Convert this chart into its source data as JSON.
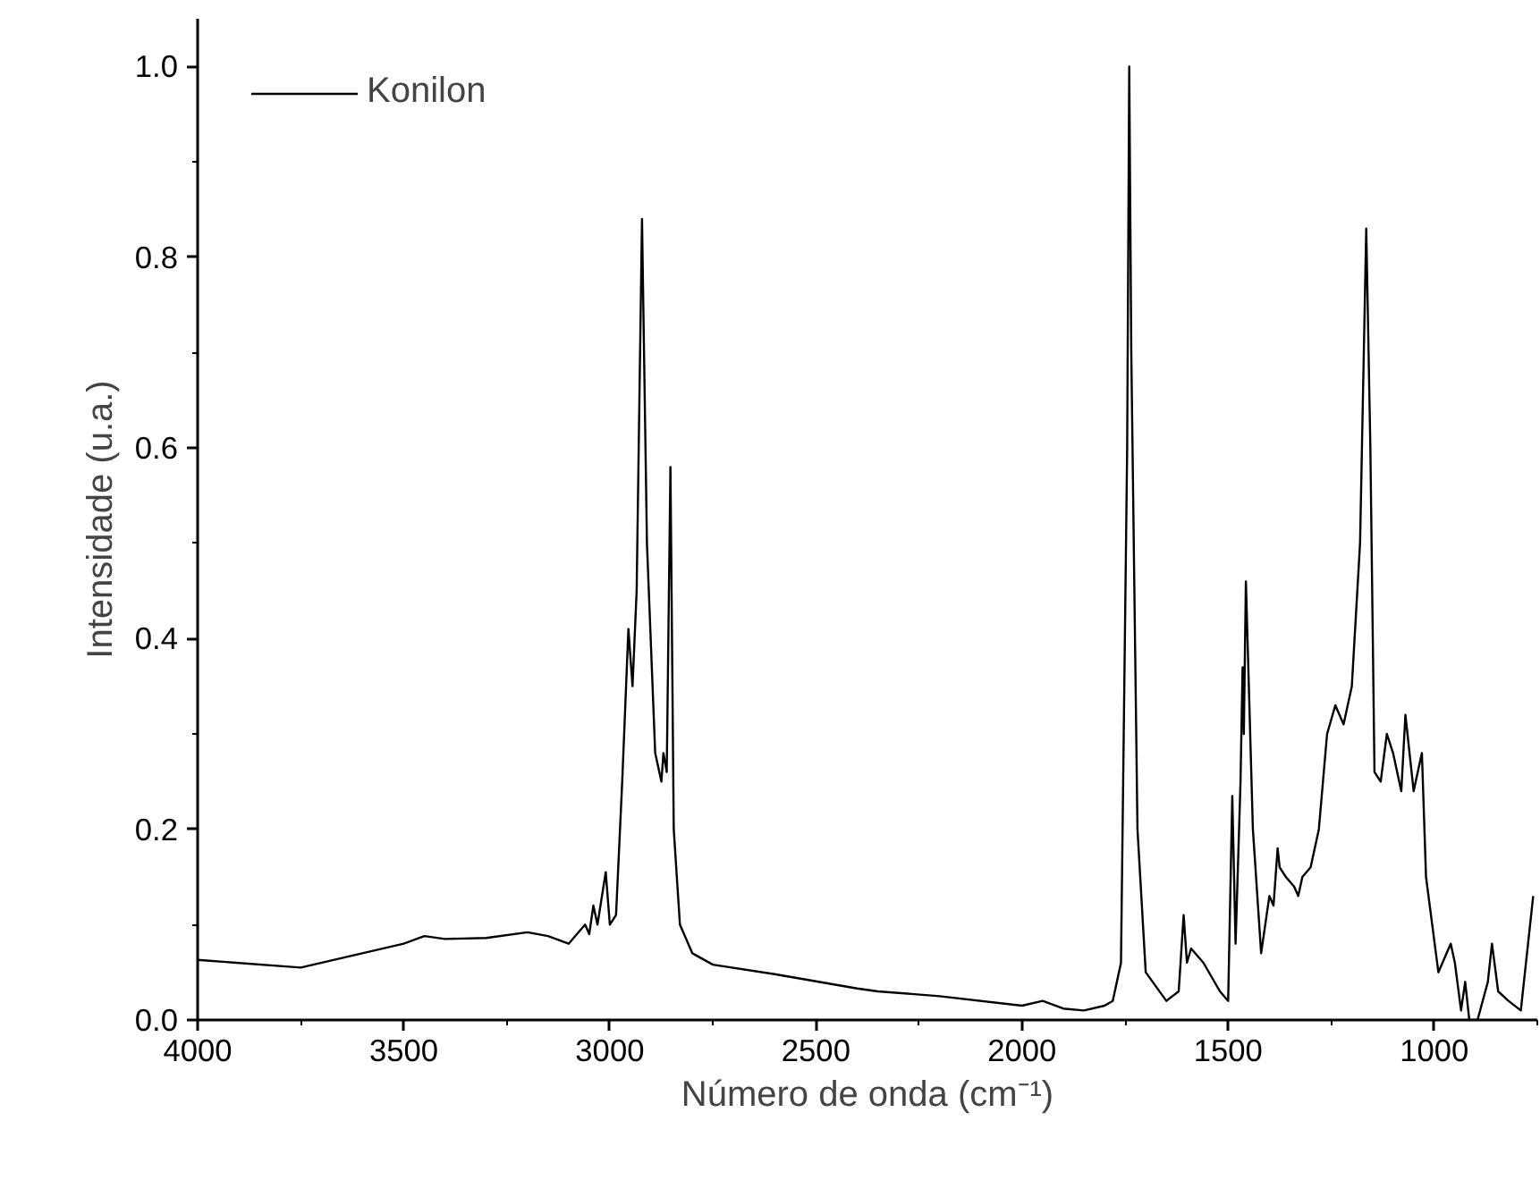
{
  "chart_data": {
    "type": "line",
    "xlabel": "Número de onda (cm⁻¹)",
    "ylabel": "Intensidade (u.a.)",
    "xlim": [
      4000,
      750
    ],
    "ylim": [
      0,
      1.05
    ],
    "xticks": [
      4000,
      3500,
      3000,
      2500,
      2000,
      1500,
      1000
    ],
    "yticks": [
      {
        "value": 0,
        "label": "0.0"
      },
      0.2,
      0.4,
      0.6,
      0.8,
      {
        "value": 1,
        "label": "1.0"
      }
    ],
    "grid": false,
    "legend": "top left",
    "marker": "none",
    "line_style": "solid",
    "series": [
      {
        "name": "Konilon",
        "color": "#000000",
        "x": [
          4000,
          3750,
          3500,
          3450,
          3400,
          3300,
          3200,
          3150,
          3100,
          3080,
          3060,
          3050,
          3040,
          3030,
          3010,
          3000,
          2985,
          2970,
          2955,
          2945,
          2935,
          2922,
          2910,
          2890,
          2875,
          2870,
          2862,
          2853,
          2845,
          2830,
          2800,
          2750,
          2600,
          2400,
          2350,
          2200,
          2000,
          1950,
          1900,
          1850,
          1800,
          1780,
          1760,
          1745,
          1740,
          1735,
          1720,
          1700,
          1650,
          1620,
          1608,
          1600,
          1590,
          1560,
          1520,
          1500,
          1490,
          1482,
          1470,
          1465,
          1462,
          1457,
          1440,
          1420,
          1400,
          1390,
          1380,
          1375,
          1360,
          1340,
          1330,
          1320,
          1300,
          1280,
          1260,
          1240,
          1220,
          1200,
          1180,
          1165,
          1155,
          1145,
          1130,
          1115,
          1100,
          1080,
          1070,
          1050,
          1030,
          1020,
          990,
          970,
          960,
          950,
          935,
          925,
          915,
          895,
          870,
          860,
          845,
          820,
          790,
          760
        ],
        "values": [
          0.063,
          0.055,
          0.08,
          0.088,
          0.085,
          0.086,
          0.092,
          0.088,
          0.08,
          0.09,
          0.1,
          0.09,
          0.12,
          0.1,
          0.155,
          0.1,
          0.11,
          0.25,
          0.41,
          0.35,
          0.45,
          0.84,
          0.5,
          0.28,
          0.25,
          0.28,
          0.26,
          0.58,
          0.2,
          0.1,
          0.07,
          0.058,
          0.048,
          0.033,
          0.03,
          0.025,
          0.015,
          0.02,
          0.012,
          0.01,
          0.015,
          0.02,
          0.06,
          0.6,
          1.0,
          0.7,
          0.2,
          0.05,
          0.02,
          0.03,
          0.11,
          0.06,
          0.075,
          0.06,
          0.03,
          0.02,
          0.235,
          0.08,
          0.25,
          0.37,
          0.3,
          0.46,
          0.2,
          0.07,
          0.13,
          0.12,
          0.18,
          0.16,
          0.15,
          0.14,
          0.13,
          0.15,
          0.16,
          0.2,
          0.3,
          0.33,
          0.31,
          0.35,
          0.5,
          0.83,
          0.6,
          0.26,
          0.25,
          0.3,
          0.28,
          0.24,
          0.32,
          0.24,
          0.28,
          0.15,
          0.05,
          0.07,
          0.08,
          0.06,
          0.01,
          0.04,
          0.0,
          0.0,
          0.04,
          0.08,
          0.03,
          0.02,
          0.01,
          0.13
        ]
      }
    ]
  }
}
